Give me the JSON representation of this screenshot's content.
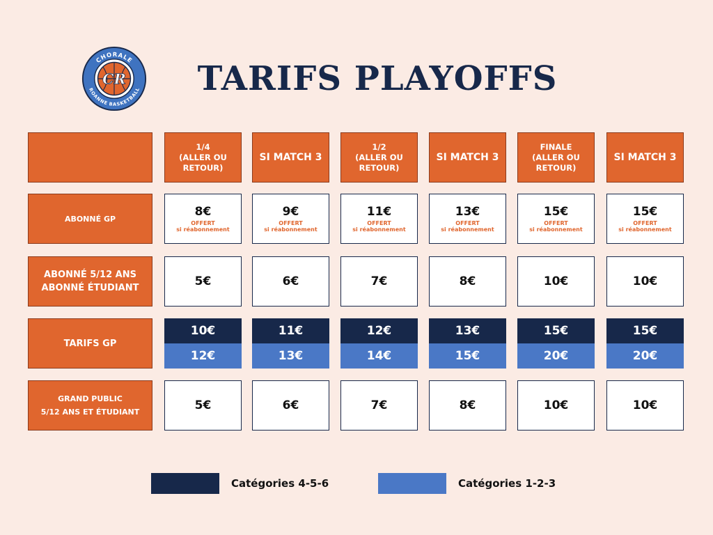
{
  "title": "TARIFS PLAYOFFS",
  "logo": {
    "top_text": "CHORALE",
    "bottom_text": "ROANNE BASKETBALL",
    "monogram": "CR",
    "colors": {
      "ring": "#3f73c0",
      "center": "#e0662e",
      "outline": "#17284a"
    }
  },
  "columns": [
    {
      "lines": [
        "1/4",
        "(ALLER OU",
        "RETOUR)"
      ]
    },
    {
      "lines": [
        "SI MATCH 3"
      ]
    },
    {
      "lines": [
        "1/2",
        "(ALLER OU",
        "RETOUR)"
      ]
    },
    {
      "lines": [
        "SI MATCH 3"
      ]
    },
    {
      "lines": [
        "FINALE",
        "(ALLER OU",
        "RETOUR)"
      ]
    },
    {
      "lines": [
        "SI MATCH 3"
      ]
    }
  ],
  "rows": [
    {
      "label_lines": [
        "ABONNÉ GP"
      ],
      "prices": [
        "8€",
        "9€",
        "11€",
        "13€",
        "15€",
        "15€"
      ],
      "note_lines": [
        "OFFERT",
        "si réabonnement"
      ]
    },
    {
      "label_lines": [
        "ABONNÉ 5/12 ANS",
        "ABONNÉ ÉTUDIANT"
      ],
      "prices": [
        "5€",
        "6€",
        "7€",
        "8€",
        "10€",
        "10€"
      ]
    },
    {
      "label_lines": [
        "TARIFS GP"
      ],
      "prices_cat_456": [
        "10€",
        "11€",
        "12€",
        "13€",
        "15€",
        "15€"
      ],
      "prices_cat_123": [
        "12€",
        "13€",
        "14€",
        "15€",
        "20€",
        "20€"
      ]
    },
    {
      "label_lines": [
        "GRAND PUBLIC",
        "5/12 ANS ET ÉTUDIANT"
      ],
      "prices": [
        "5€",
        "6€",
        "7€",
        "8€",
        "10€",
        "10€"
      ]
    }
  ],
  "legend": [
    {
      "label": "Catégories 4-5-6",
      "color": "#17284a"
    },
    {
      "label": "Catégories 1-2-3",
      "color": "#4a78c6"
    }
  ],
  "colors": {
    "background": "#fbebe4",
    "orange": "#e0662e",
    "navy": "#17284a",
    "blue": "#4a78c6"
  }
}
